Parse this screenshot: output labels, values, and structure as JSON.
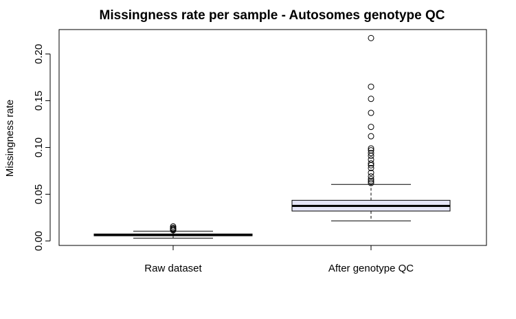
{
  "chart_data": {
    "type": "boxplot",
    "title": "Missingness rate per sample - Autosomes genotype QC",
    "xlabel": "",
    "ylabel": "Missingness rate",
    "ylim": [
      0.0,
      0.22
    ],
    "yticks": [
      0.0,
      0.05,
      0.1,
      0.15,
      0.2
    ],
    "ytick_labels": [
      "0.00",
      "0.05",
      "0.10",
      "0.15",
      "0.20"
    ],
    "categories": [
      "Raw dataset",
      "After genotype QC"
    ],
    "boxes": [
      {
        "name": "Raw dataset",
        "whisker_low": 0.003,
        "q1": 0.0055,
        "median": 0.0065,
        "q3": 0.0075,
        "whisker_high": 0.0105,
        "outliers": [
          0.0115,
          0.012,
          0.013,
          0.014,
          0.0155
        ],
        "fill": "#ffffff"
      },
      {
        "name": "After genotype QC",
        "whisker_low": 0.0215,
        "q1": 0.032,
        "median": 0.0375,
        "q3": 0.0435,
        "whisker_high": 0.0605,
        "outliers": [
          0.062,
          0.064,
          0.066,
          0.069,
          0.073,
          0.078,
          0.081,
          0.083,
          0.087,
          0.091,
          0.094,
          0.097,
          0.099,
          0.112,
          0.122,
          0.137,
          0.152,
          0.165,
          0.217
        ],
        "fill": "#e4e4f6"
      }
    ]
  }
}
